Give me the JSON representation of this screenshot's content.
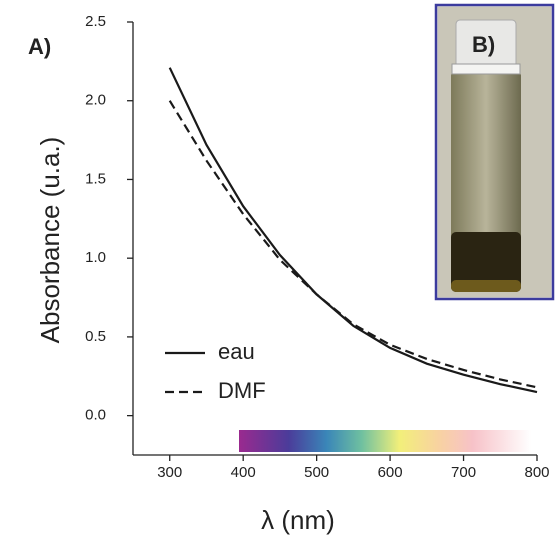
{
  "chart_data": {
    "type": "line",
    "panel_labels": [
      "A)",
      "B)"
    ],
    "xlabel": "λ (nm)",
    "ylabel": "Absorbance (u.a.)",
    "x": [
      300,
      350,
      400,
      450,
      500,
      550,
      600,
      650,
      700,
      750,
      800
    ],
    "series": [
      {
        "name": "eau",
        "color": "#1a1a1a",
        "linestyle": "solid",
        "values": [
          2.21,
          1.72,
          1.33,
          1.02,
          0.77,
          0.57,
          0.43,
          0.33,
          0.26,
          0.2,
          0.15
        ]
      },
      {
        "name": "DMF",
        "color": "#1a1a1a",
        "linestyle": "dashed",
        "values": [
          2.0,
          1.62,
          1.28,
          0.99,
          0.77,
          0.58,
          0.45,
          0.36,
          0.29,
          0.23,
          0.18
        ]
      }
    ],
    "xlim": [
      250,
      800
    ],
    "xticks": [
      300,
      400,
      500,
      600,
      700,
      800
    ],
    "ylim": [
      -0.25,
      2.5
    ],
    "yticks": [
      {
        "value": 0,
        "label": "0.0"
      },
      0.5,
      {
        "value": 1,
        "label": "1.0"
      },
      1.5,
      {
        "value": 2,
        "label": "2.0"
      },
      2.5
    ],
    "legend": "lower left"
  }
}
